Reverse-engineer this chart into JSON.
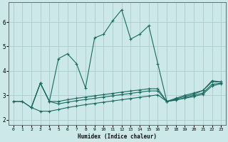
{
  "xlabel": "Humidex (Indice chaleur)",
  "background_color": "#cce8e8",
  "grid_color": "#aacccc",
  "line_color": "#1a6b60",
  "xlim": [
    -0.5,
    23.5
  ],
  "ylim": [
    1.8,
    6.8
  ],
  "xticks": [
    0,
    1,
    2,
    3,
    4,
    5,
    6,
    7,
    8,
    9,
    10,
    11,
    12,
    13,
    14,
    15,
    16,
    17,
    18,
    19,
    20,
    21,
    22,
    23
  ],
  "yticks": [
    2,
    3,
    4,
    5,
    6
  ],
  "series": [
    {
      "x": [
        0,
        1,
        2,
        3,
        4,
        5,
        6,
        7,
        8,
        9,
        10,
        11,
        12,
        13,
        14,
        15,
        16,
        17,
        18,
        19,
        20,
        21,
        22,
        23
      ],
      "y": [
        2.75,
        2.75,
        2.5,
        3.5,
        2.75,
        4.5,
        4.7,
        4.3,
        3.3,
        5.35,
        5.5,
        6.05,
        6.5,
        5.3,
        5.5,
        5.85,
        4.3,
        2.75,
        2.85,
        2.95,
        3.05,
        3.2,
        3.6,
        3.55
      ]
    },
    {
      "x": [
        0,
        1,
        2,
        3,
        4,
        5,
        6,
        7,
        8,
        9,
        10,
        11,
        12,
        13,
        14,
        15,
        16,
        17,
        18,
        19,
        20,
        21,
        22,
        23
      ],
      "y": [
        2.75,
        2.75,
        2.5,
        3.5,
        2.75,
        2.75,
        2.82,
        2.88,
        2.93,
        2.98,
        3.03,
        3.08,
        3.13,
        3.18,
        3.22,
        3.27,
        3.27,
        2.75,
        2.88,
        3.0,
        3.1,
        3.2,
        3.55,
        3.55
      ]
    },
    {
      "x": [
        2,
        3,
        4,
        5,
        6,
        7,
        8,
        9,
        10,
        11,
        12,
        13,
        14,
        15,
        16,
        17,
        18,
        19,
        20,
        21,
        22,
        23
      ],
      "y": [
        2.5,
        3.5,
        2.75,
        2.65,
        2.72,
        2.78,
        2.83,
        2.88,
        2.93,
        2.98,
        3.03,
        3.08,
        3.13,
        3.18,
        3.18,
        2.75,
        2.8,
        2.9,
        3.0,
        3.1,
        3.45,
        3.5
      ]
    },
    {
      "x": [
        2,
        3,
        4,
        5,
        6,
        7,
        8,
        9,
        10,
        11,
        12,
        13,
        14,
        15,
        16,
        17,
        18,
        19,
        20,
        21,
        22,
        23
      ],
      "y": [
        2.5,
        2.35,
        2.35,
        2.42,
        2.5,
        2.56,
        2.62,
        2.67,
        2.72,
        2.77,
        2.82,
        2.87,
        2.92,
        2.97,
        3.02,
        2.75,
        2.82,
        2.88,
        2.95,
        3.05,
        3.38,
        3.48
      ]
    }
  ]
}
